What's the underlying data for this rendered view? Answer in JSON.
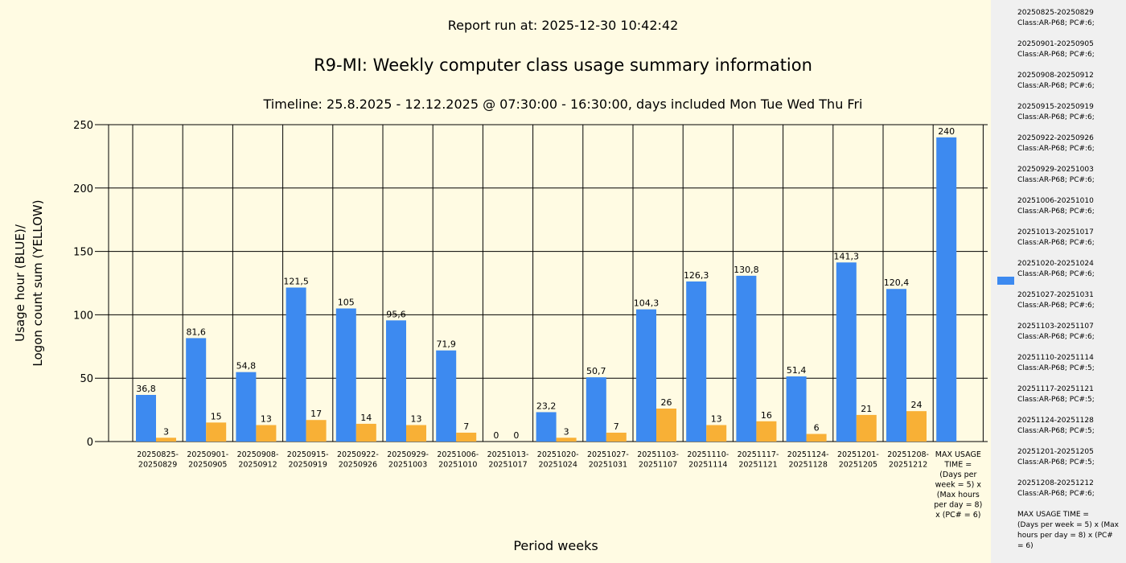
{
  "report_run": "Report run at: 2025-12-30 10:42:42",
  "main_title": "R9-MI: Weekly computer class usage summary information",
  "timeline": "Timeline:  25.8.2025  - 12.12.2025  @  07:30:00 -  16:30:00, days included Mon Tue Wed Thu Fri",
  "colors": {
    "usage": "#3d8af0",
    "logons": "#f8b036",
    "background": "#fffbe3",
    "legend_bg": "#f0f0f0"
  },
  "chart_data": {
    "type": "bar",
    "xlabel": "Period weeks",
    "ylabel_lines": [
      "Usage hour (BLUE)/",
      "Logon count sum (YELLOW)"
    ],
    "ylim": [
      0,
      250
    ],
    "yticks": [
      "0",
      "50",
      "100",
      "150",
      "200",
      "250"
    ],
    "categories": [
      [
        "20250825-",
        "20250829"
      ],
      [
        "20250901-",
        "20250905"
      ],
      [
        "20250908-",
        "20250912"
      ],
      [
        "20250915-",
        "20250919"
      ],
      [
        "20250922-",
        "20250926"
      ],
      [
        "20250929-",
        "20251003"
      ],
      [
        "20251006-",
        "20251010"
      ],
      [
        "20251013-",
        "20251017"
      ],
      [
        "20251020-",
        "20251024"
      ],
      [
        "20251027-",
        "20251031"
      ],
      [
        "20251103-",
        "20251107"
      ],
      [
        "20251110-",
        "20251114"
      ],
      [
        "20251117-",
        "20251121"
      ],
      [
        "20251124-",
        "20251128"
      ],
      [
        "20251201-",
        "20251205"
      ],
      [
        "20251208-",
        "20251212"
      ],
      [
        "MAX USAGE",
        "TIME =",
        "(Days per",
        "week = 5) x",
        "(Max hours",
        "per day = 8)",
        "x (PC# = 6)"
      ]
    ],
    "series": [
      {
        "name": "Usage hour",
        "color": "#3d8af0",
        "values": [
          36.8,
          81.6,
          54.8,
          121.5,
          105,
          95.6,
          71.9,
          0,
          23.2,
          50.7,
          104.3,
          126.3,
          130.8,
          51.4,
          141.3,
          120.4,
          240
        ],
        "labels": [
          "36,8",
          "81,6",
          "54,8",
          "121,5",
          "105",
          "95,6",
          "71,9",
          "0",
          "23,2",
          "50,7",
          "104,3",
          "126,3",
          "130,8",
          "51,4",
          "141,3",
          "120,4",
          "240"
        ]
      },
      {
        "name": "Logon count sum",
        "color": "#f8b036",
        "values": [
          3,
          15,
          13,
          17,
          14,
          13,
          7,
          0,
          3,
          7,
          26,
          13,
          16,
          6,
          21,
          24,
          null
        ],
        "labels": [
          "3",
          "15",
          "13",
          "17",
          "14",
          "13",
          "7",
          "0",
          "3",
          "7",
          "26",
          "13",
          "16",
          "6",
          "21",
          "24",
          ""
        ]
      }
    ]
  },
  "legend": {
    "items": [
      [
        "20250825-20250829",
        "Class:AR-P68; PC#:6;"
      ],
      [
        "20250901-20250905",
        "Class:AR-P68; PC#:6;"
      ],
      [
        "20250908-20250912",
        "Class:AR-P68; PC#:6;"
      ],
      [
        "20250915-20250919",
        "Class:AR-P68; PC#:6;"
      ],
      [
        "20250922-20250926",
        "Class:AR-P68; PC#:6;"
      ],
      [
        "20250929-20251003",
        "Class:AR-P68; PC#:6;"
      ],
      [
        "20251006-20251010",
        "Class:AR-P68; PC#:6;"
      ],
      [
        "20251013-20251017",
        "Class:AR-P68; PC#:6;"
      ],
      [
        "20251020-20251024",
        "Class:AR-P68; PC#:6;"
      ],
      [
        "20251027-20251031",
        "Class:AR-P68; PC#:6;"
      ],
      [
        "20251103-20251107",
        "Class:AR-P68; PC#:6;"
      ],
      [
        "20251110-20251114",
        "Class:AR-P68; PC#:5;"
      ],
      [
        "20251117-20251121",
        "Class:AR-P68; PC#:5;"
      ],
      [
        "20251124-20251128",
        "Class:AR-P68; PC#:5;"
      ],
      [
        "20251201-20251205",
        "Class:AR-P68; PC#:5;"
      ],
      [
        "20251208-20251212",
        "Class:AR-P68; PC#:6;"
      ],
      [
        "MAX USAGE TIME =",
        " (Days per week = 5) x (Max",
        "hours per day = 8) x (PC#",
        "= 6)"
      ]
    ]
  }
}
